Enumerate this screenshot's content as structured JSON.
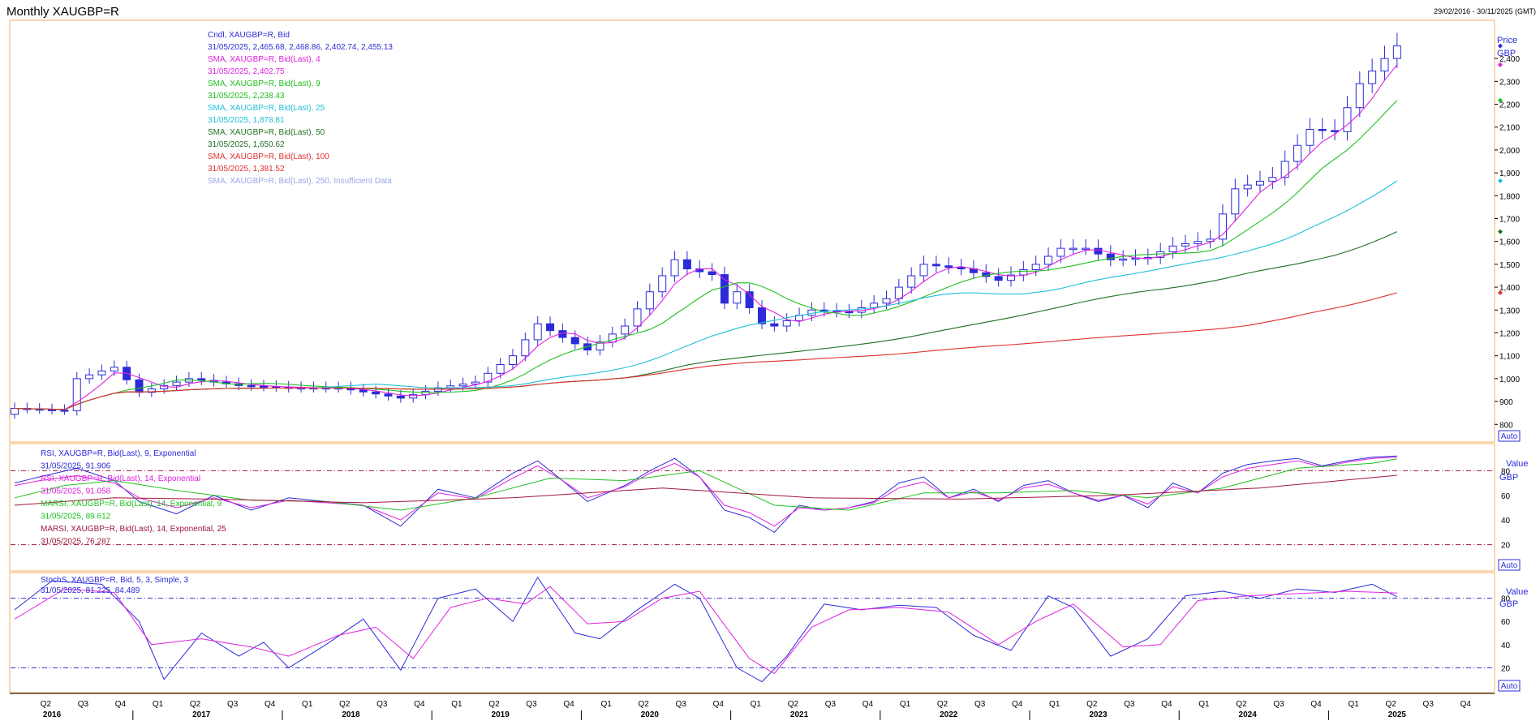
{
  "header": {
    "title": "Monthly XAUGBP=R",
    "date_range": "29/02/2016 - 30/11/2025 (GMT)"
  },
  "colors": {
    "candle": "#2b2bd9",
    "sma4": "#e020e0",
    "sma9": "#20c020",
    "sma25": "#20c0d8",
    "sma50": "#207020",
    "sma100": "#e03030",
    "sma250": "#9aa8e8",
    "rsi9": "#2b2bd9",
    "rsi14": "#e020e0",
    "marsi9": "#20c020",
    "marsi25": "#a01838",
    "stoch_k": "#2b2bd9",
    "stoch_d": "#e020e0",
    "panel_border": "#f0b060",
    "ref_line": "#a01838",
    "stoch_ref": "#3030d0"
  },
  "legend_price": [
    {
      "text": "Cndl, XAUGBP=R, Bid",
      "color": "#2b2bd9"
    },
    {
      "text": "31/05/2025, 2,465.68, 2,468.86, 2,402.74, 2,455.13",
      "color": "#2b2bd9"
    },
    {
      "text": "SMA, XAUGBP=R, Bid(Last), 4",
      "color": "#e020e0"
    },
    {
      "text": "31/05/2025, 2,402.75",
      "color": "#e020e0"
    },
    {
      "text": "SMA, XAUGBP=R, Bid(Last), 9",
      "color": "#20c020"
    },
    {
      "text": "31/05/2025, 2,238.43",
      "color": "#20c020"
    },
    {
      "text": "SMA, XAUGBP=R, Bid(Last), 25",
      "color": "#20c0d8"
    },
    {
      "text": "31/05/2025, 1,878.81",
      "color": "#20c0d8"
    },
    {
      "text": "SMA, XAUGBP=R, Bid(Last), 50",
      "color": "#207020"
    },
    {
      "text": "31/05/2025, 1,650.62",
      "color": "#207020"
    },
    {
      "text": "SMA, XAUGBP=R, Bid(Last), 100",
      "color": "#e03030"
    },
    {
      "text": "31/05/2025, 1,381.52",
      "color": "#e03030"
    },
    {
      "text": "SMA, XAUGBP=R, Bid(Last), 250, Insufficient Data",
      "color": "#9aa8e8"
    }
  ],
  "legend_rsi": [
    {
      "text": "RSI, XAUGBP=R, Bid(Last), 9, Exponential",
      "color": "#2b2bd9"
    },
    {
      "text": "31/05/2025, 91.906",
      "color": "#2b2bd9"
    },
    {
      "text": "RSI, XAUGBP=R, Bid(Last), 14, Exponential",
      "color": "#e020e0"
    },
    {
      "text": "31/05/2025, 91.058",
      "color": "#e020e0"
    },
    {
      "text": "MARSI, XAUGBP=R, Bid(Last), 14, Exponential, 9",
      "color": "#20c020"
    },
    {
      "text": "31/05/2025, 89.612",
      "color": "#20c020"
    },
    {
      "text": "MARSI, XAUGBP=R, Bid(Last), 14, Exponential, 25",
      "color": "#a01838"
    },
    {
      "text": "31/05/2025, 76.287",
      "color": "#a01838"
    }
  ],
  "legend_stoch": [
    {
      "text": "StochS, XAUGBP=R, Bid, 5, 3, Simple, 3",
      "color": "#2b2bd9"
    },
    {
      "text": "31/05/2025, 81.225, 84.489",
      "color": "#2b2bd9"
    }
  ],
  "axis_labels": {
    "price_title": "Price",
    "price_unit": "GBP",
    "value_title": "Value",
    "value_unit": "GBP",
    "auto": "Auto"
  },
  "chart_data": {
    "type": "candlestick",
    "title": "Monthly XAUGBP=R",
    "x_start": "2016-02",
    "x_end": "2025-11",
    "x_years": [
      "2016",
      "2017",
      "2018",
      "2019",
      "2020",
      "2021",
      "2022",
      "2023",
      "2024",
      "2025"
    ],
    "x_quarter_labels": [
      "Q1",
      "Q2",
      "Q3",
      "Q4"
    ],
    "price_axis": {
      "ticks": [
        800,
        900,
        1000,
        1100,
        1200,
        1300,
        1400,
        1500,
        1600,
        1700,
        1800,
        1900,
        2000,
        2100,
        2200,
        2300,
        2400
      ],
      "range": [
        730,
        2560
      ]
    },
    "value_axis_ticks": [
      20,
      40,
      60,
      80
    ],
    "rsi_ref_lines": [
      80,
      20
    ],
    "stoch_ref_lines": [
      80,
      20
    ],
    "ohlc_anchor_close": [
      [
        "2016-02",
        870
      ],
      [
        "2016-06",
        860
      ],
      [
        "2016-07",
        1000
      ],
      [
        "2016-10",
        1050
      ],
      [
        "2016-12",
        940
      ],
      [
        "2017-04",
        1000
      ],
      [
        "2017-08",
        970
      ],
      [
        "2017-12",
        960
      ],
      [
        "2018-04",
        960
      ],
      [
        "2018-09",
        915
      ],
      [
        "2018-12",
        960
      ],
      [
        "2019-03",
        985
      ],
      [
        "2019-06",
        1100
      ],
      [
        "2019-08",
        1240
      ],
      [
        "2019-10",
        1180
      ],
      [
        "2019-12",
        1125
      ],
      [
        "2020-03",
        1230
      ],
      [
        "2020-05",
        1380
      ],
      [
        "2020-07",
        1520
      ],
      [
        "2020-08",
        1480
      ],
      [
        "2020-10",
        1455
      ],
      [
        "2020-11",
        1330
      ],
      [
        "2020-12",
        1380
      ],
      [
        "2021-02",
        1240
      ],
      [
        "2021-03",
        1230
      ],
      [
        "2021-06",
        1300
      ],
      [
        "2021-09",
        1290
      ],
      [
        "2021-12",
        1350
      ],
      [
        "2022-03",
        1500
      ],
      [
        "2022-06",
        1480
      ],
      [
        "2022-09",
        1430
      ],
      [
        "2022-12",
        1500
      ],
      [
        "2023-02",
        1570
      ],
      [
        "2023-04",
        1570
      ],
      [
        "2023-06",
        1520
      ],
      [
        "2023-09",
        1530
      ],
      [
        "2023-11",
        1580
      ],
      [
        "2024-02",
        1610
      ],
      [
        "2024-03",
        1720
      ],
      [
        "2024-04",
        1830
      ],
      [
        "2024-07",
        1880
      ],
      [
        "2024-10",
        2090
      ],
      [
        "2024-12",
        2080
      ],
      [
        "2025-02",
        2290
      ],
      [
        "2025-04",
        2400
      ],
      [
        "2025-05",
        2455
      ]
    ],
    "rsi9": [
      [
        "2016-02",
        70
      ],
      [
        "2016-04",
        75
      ],
      [
        "2016-07",
        82
      ],
      [
        "2016-10",
        72
      ],
      [
        "2016-12",
        55
      ],
      [
        "2017-03",
        45
      ],
      [
        "2017-06",
        60
      ],
      [
        "2017-09",
        48
      ],
      [
        "2017-12",
        58
      ],
      [
        "2018-03",
        55
      ],
      [
        "2018-06",
        52
      ],
      [
        "2018-09",
        35
      ],
      [
        "2018-12",
        65
      ],
      [
        "2019-03",
        58
      ],
      [
        "2019-06",
        78
      ],
      [
        "2019-08",
        88
      ],
      [
        "2019-10",
        72
      ],
      [
        "2019-12",
        55
      ],
      [
        "2020-03",
        68
      ],
      [
        "2020-05",
        80
      ],
      [
        "2020-07",
        90
      ],
      [
        "2020-09",
        75
      ],
      [
        "2020-11",
        48
      ],
      [
        "2021-01",
        42
      ],
      [
        "2021-03",
        30
      ],
      [
        "2021-05",
        52
      ],
      [
        "2021-07",
        48
      ],
      [
        "2021-09",
        50
      ],
      [
        "2021-11",
        55
      ],
      [
        "2022-01",
        70
      ],
      [
        "2022-03",
        75
      ],
      [
        "2022-05",
        58
      ],
      [
        "2022-07",
        65
      ],
      [
        "2022-09",
        55
      ],
      [
        "2022-11",
        68
      ],
      [
        "2023-01",
        72
      ],
      [
        "2023-03",
        62
      ],
      [
        "2023-05",
        55
      ],
      [
        "2023-07",
        60
      ],
      [
        "2023-09",
        50
      ],
      [
        "2023-11",
        70
      ],
      [
        "2024-01",
        62
      ],
      [
        "2024-03",
        78
      ],
      [
        "2024-05",
        85
      ],
      [
        "2024-07",
        88
      ],
      [
        "2024-09",
        90
      ],
      [
        "2024-11",
        84
      ],
      [
        "2025-01",
        88
      ],
      [
        "2025-03",
        91
      ],
      [
        "2025-05",
        91.906
      ]
    ],
    "rsi14": [
      [
        "2016-02",
        68
      ],
      [
        "2016-04",
        72
      ],
      [
        "2016-07",
        76
      ],
      [
        "2016-10",
        70
      ],
      [
        "2016-12",
        58
      ],
      [
        "2017-03",
        50
      ],
      [
        "2017-06",
        58
      ],
      [
        "2017-09",
        50
      ],
      [
        "2017-12",
        56
      ],
      [
        "2018-03",
        54
      ],
      [
        "2018-06",
        52
      ],
      [
        "2018-09",
        40
      ],
      [
        "2018-12",
        62
      ],
      [
        "2019-03",
        57
      ],
      [
        "2019-06",
        74
      ],
      [
        "2019-08",
        84
      ],
      [
        "2019-10",
        72
      ],
      [
        "2019-12",
        58
      ],
      [
        "2020-03",
        67
      ],
      [
        "2020-05",
        78
      ],
      [
        "2020-07",
        86
      ],
      [
        "2020-09",
        75
      ],
      [
        "2020-11",
        52
      ],
      [
        "2021-01",
        46
      ],
      [
        "2021-03",
        35
      ],
      [
        "2021-05",
        50
      ],
      [
        "2021-07",
        48
      ],
      [
        "2021-09",
        50
      ],
      [
        "2021-11",
        54
      ],
      [
        "2022-01",
        66
      ],
      [
        "2022-03",
        71
      ],
      [
        "2022-05",
        58
      ],
      [
        "2022-07",
        63
      ],
      [
        "2022-09",
        56
      ],
      [
        "2022-11",
        66
      ],
      [
        "2023-01",
        69
      ],
      [
        "2023-03",
        62
      ],
      [
        "2023-05",
        56
      ],
      [
        "2023-07",
        60
      ],
      [
        "2023-09",
        53
      ],
      [
        "2023-11",
        67
      ],
      [
        "2024-01",
        62
      ],
      [
        "2024-03",
        75
      ],
      [
        "2024-05",
        82
      ],
      [
        "2024-07",
        85
      ],
      [
        "2024-09",
        88
      ],
      [
        "2024-11",
        83
      ],
      [
        "2025-01",
        87
      ],
      [
        "2025-03",
        90
      ],
      [
        "2025-05",
        91.058
      ]
    ],
    "marsi9": [
      [
        "2016-02",
        58
      ],
      [
        "2016-06",
        68
      ],
      [
        "2016-10",
        72
      ],
      [
        "2017-03",
        64
      ],
      [
        "2017-09",
        56
      ],
      [
        "2018-03",
        55
      ],
      [
        "2018-09",
        48
      ],
      [
        "2019-03",
        58
      ],
      [
        "2019-09",
        74
      ],
      [
        "2020-03",
        72
      ],
      [
        "2020-09",
        80
      ],
      [
        "2021-03",
        52
      ],
      [
        "2021-09",
        48
      ],
      [
        "2022-03",
        62
      ],
      [
        "2022-09",
        62
      ],
      [
        "2023-03",
        64
      ],
      [
        "2023-09",
        58
      ],
      [
        "2024-03",
        66
      ],
      [
        "2024-09",
        82
      ],
      [
        "2025-03",
        86
      ],
      [
        "2025-05",
        89.612
      ]
    ],
    "marsi25": [
      [
        "2016-02",
        52
      ],
      [
        "2016-10",
        58
      ],
      [
        "2017-06",
        57
      ],
      [
        "2018-06",
        54
      ],
      [
        "2019-06",
        58
      ],
      [
        "2020-06",
        66
      ],
      [
        "2021-06",
        58
      ],
      [
        "2022-06",
        57
      ],
      [
        "2023-06",
        60
      ],
      [
        "2024-06",
        66
      ],
      [
        "2025-05",
        76.287
      ]
    ],
    "stoch_k": [
      [
        "2016-02",
        70
      ],
      [
        "2016-05",
        95
      ],
      [
        "2016-09",
        92
      ],
      [
        "2016-12",
        60
      ],
      [
        "2017-02",
        10
      ],
      [
        "2017-05",
        50
      ],
      [
        "2017-08",
        30
      ],
      [
        "2017-10",
        42
      ],
      [
        "2017-12",
        20
      ],
      [
        "2018-03",
        40
      ],
      [
        "2018-06",
        62
      ],
      [
        "2018-09",
        18
      ],
      [
        "2018-12",
        80
      ],
      [
        "2019-03",
        88
      ],
      [
        "2019-06",
        60
      ],
      [
        "2019-08",
        98
      ],
      [
        "2019-11",
        50
      ],
      [
        "2020-01",
        45
      ],
      [
        "2020-04",
        70
      ],
      [
        "2020-07",
        92
      ],
      [
        "2020-09",
        80
      ],
      [
        "2020-12",
        20
      ],
      [
        "2021-02",
        8
      ],
      [
        "2021-04",
        30
      ],
      [
        "2021-07",
        75
      ],
      [
        "2021-10",
        70
      ],
      [
        "2022-01",
        74
      ],
      [
        "2022-04",
        72
      ],
      [
        "2022-07",
        48
      ],
      [
        "2022-10",
        35
      ],
      [
        "2023-01",
        82
      ],
      [
        "2023-03",
        72
      ],
      [
        "2023-06",
        30
      ],
      [
        "2023-09",
        45
      ],
      [
        "2023-12",
        82
      ],
      [
        "2024-03",
        86
      ],
      [
        "2024-06",
        80
      ],
      [
        "2024-09",
        88
      ],
      [
        "2024-12",
        85
      ],
      [
        "2025-03",
        92
      ],
      [
        "2025-05",
        81.225
      ]
    ],
    "stoch_d": [
      [
        "2016-02",
        62
      ],
      [
        "2016-06",
        88
      ],
      [
        "2016-10",
        85
      ],
      [
        "2017-01",
        40
      ],
      [
        "2017-05",
        45
      ],
      [
        "2017-09",
        38
      ],
      [
        "2017-12",
        30
      ],
      [
        "2018-04",
        48
      ],
      [
        "2018-07",
        55
      ],
      [
        "2018-10",
        28
      ],
      [
        "2019-01",
        72
      ],
      [
        "2019-04",
        80
      ],
      [
        "2019-07",
        75
      ],
      [
        "2019-09",
        90
      ],
      [
        "2019-12",
        58
      ],
      [
        "2020-03",
        60
      ],
      [
        "2020-06",
        80
      ],
      [
        "2020-09",
        86
      ],
      [
        "2021-01",
        28
      ],
      [
        "2021-03",
        15
      ],
      [
        "2021-06",
        55
      ],
      [
        "2021-09",
        70
      ],
      [
        "2022-01",
        72
      ],
      [
        "2022-05",
        68
      ],
      [
        "2022-09",
        40
      ],
      [
        "2022-12",
        60
      ],
      [
        "2023-03",
        75
      ],
      [
        "2023-07",
        38
      ],
      [
        "2023-10",
        40
      ],
      [
        "2024-01",
        78
      ],
      [
        "2024-05",
        82
      ],
      [
        "2024-09",
        84
      ],
      [
        "2025-01",
        86
      ],
      [
        "2025-05",
        84.489
      ]
    ]
  }
}
